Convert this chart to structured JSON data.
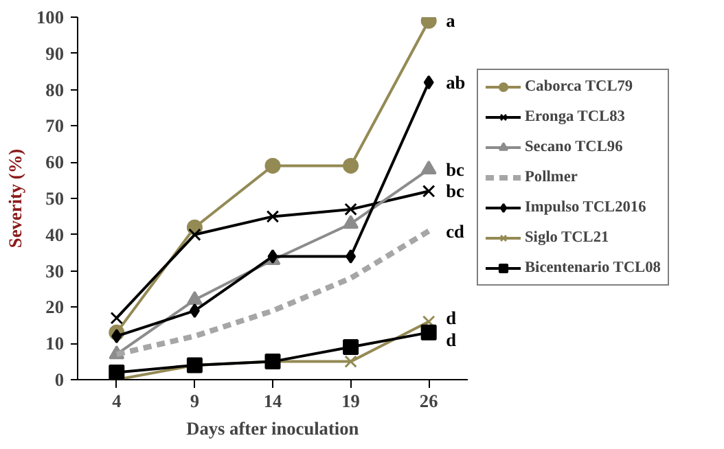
{
  "chart_data": {
    "type": "line",
    "xlabel": "Days after inoculation",
    "ylabel": "Severity (%)",
    "categories": [
      "4",
      "9",
      "14",
      "19",
      "26"
    ],
    "ylim": [
      0,
      100
    ],
    "yticks": [
      0,
      10,
      20,
      30,
      40,
      50,
      60,
      70,
      80,
      90,
      100
    ],
    "grid": false,
    "legend": "right",
    "series": [
      {
        "name": "Caborca TCL79",
        "color": "#948a54",
        "marker": "circle",
        "line_style": "solid",
        "values": [
          13,
          42,
          59,
          59,
          99
        ]
      },
      {
        "name": "Eronga TCL83",
        "color": "#000000",
        "marker": "cross",
        "line_style": "solid",
        "values": [
          17,
          40,
          45,
          47,
          52
        ]
      },
      {
        "name": "Secano TCL96",
        "color": "#8c8c8c",
        "marker": "triangle",
        "line_style": "solid",
        "values": [
          7,
          22,
          33,
          43,
          58
        ]
      },
      {
        "name": "Pollmer",
        "color": "#a6a6a6",
        "marker": "none",
        "line_style": "dashed",
        "values": [
          7,
          12,
          19,
          28,
          41
        ]
      },
      {
        "name": "Impulso TCL2016",
        "color": "#000000",
        "marker": "diamond",
        "line_style": "solid",
        "values": [
          12,
          19,
          34,
          34,
          82
        ]
      },
      {
        "name": "Siglo TCL21",
        "color": "#948a54",
        "marker": "cross",
        "line_style": "solid",
        "values": [
          0,
          4,
          5,
          5,
          16
        ]
      },
      {
        "name": "Bicentenario TCL08",
        "color": "#000000",
        "marker": "square",
        "line_style": "solid",
        "values": [
          2,
          4,
          5,
          9,
          13
        ]
      }
    ],
    "annotations": [
      {
        "text": "a",
        "x": "26",
        "y": 99
      },
      {
        "text": "ab",
        "x": "26",
        "y": 82
      },
      {
        "text": "bc",
        "x": "26",
        "y": 58
      },
      {
        "text": "bc",
        "x": "26",
        "y": 52
      },
      {
        "text": "cd",
        "x": "26",
        "y": 41
      },
      {
        "text": "d",
        "x": "26",
        "y": 17
      },
      {
        "text": "d",
        "x": "26",
        "y": 11
      }
    ]
  }
}
